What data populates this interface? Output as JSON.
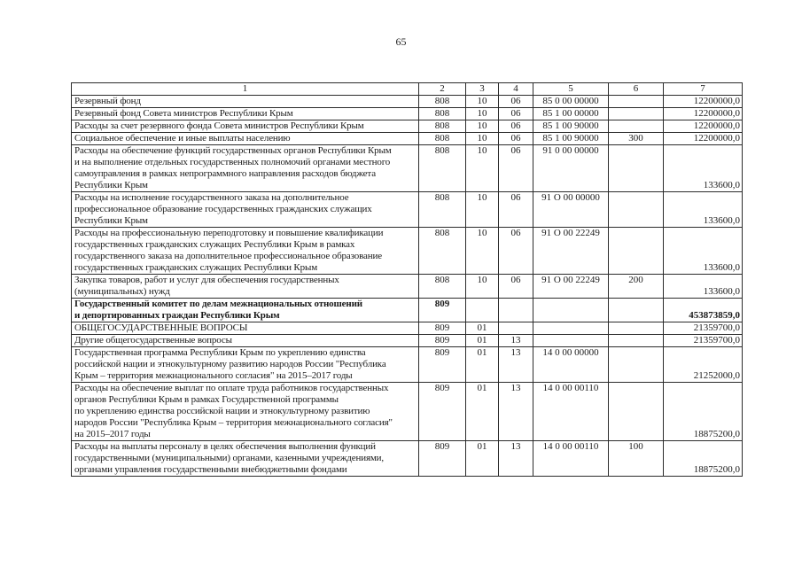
{
  "page": {
    "number": "65"
  },
  "table": {
    "headers": [
      "1",
      "2",
      "3",
      "4",
      "5",
      "6",
      "7"
    ],
    "rows": [
      {
        "bold": false,
        "name": "Резервный фонд",
        "c2": "808",
        "c3": "10",
        "c4": "06",
        "c5": "85 0 00 00000",
        "c6": "",
        "c7": "12200000,0"
      },
      {
        "bold": false,
        "name": "Резервный фонд Совета министров Республики Крым",
        "c2": "808",
        "c3": "10",
        "c4": "06",
        "c5": "85 1 00 00000",
        "c6": "",
        "c7": "12200000,0"
      },
      {
        "bold": false,
        "name": "Расходы за счет резервного фонда Совета министров Республики Крым",
        "c2": "808",
        "c3": "10",
        "c4": "06",
        "c5": "85 1 00 90000",
        "c6": "",
        "c7": "12200000,0"
      },
      {
        "bold": false,
        "name": "Социальное обеспечение и иные выплаты населению",
        "c2": "808",
        "c3": "10",
        "c4": "06",
        "c5": "85 1 00 90000",
        "c6": "300",
        "c7": "12200000,0"
      },
      {
        "bold": false,
        "name": "Расходы на обеспечение функций государственных органов Республики Крым\nи на выполнение отдельных государственных полномочий органами местного\nсамоуправления в рамках непрограммного направления расходов бюджета\nРеспублики Крым",
        "c2": "808",
        "c3": "10",
        "c4": "06",
        "c5": "91 0 00 00000",
        "c6": "",
        "c7": "133600,0"
      },
      {
        "bold": false,
        "name": "Расходы на исполнение государственного заказа на дополнительное\nпрофессиональное образование государственных гражданских служащих\nРеспублики Крым",
        "c2": "808",
        "c3": "10",
        "c4": "06",
        "c5": "91 О 00 00000",
        "c6": "",
        "c7": "133600,0"
      },
      {
        "bold": false,
        "name": "Расходы на профессиональную переподготовку и повышение квалификации\nгосударственных гражданских служащих Республики Крым в рамках\nгосударственного заказа на дополнительное профессиональное образование\nгосударственных гражданских служащих Республики Крым",
        "c2": "808",
        "c3": "10",
        "c4": "06",
        "c5": "91 О 00 22249",
        "c6": "",
        "c7": "133600,0"
      },
      {
        "bold": false,
        "name": "Закупка товаров, работ и услуг для обеспечения государственных\n(муниципальных) нужд",
        "c2": "808",
        "c3": "10",
        "c4": "06",
        "c5": "91 О 00 22249",
        "c6": "200",
        "c7": "133600,0"
      },
      {
        "bold": true,
        "name": "Государственный комитет по делам межнациональных отношений\nи депортированных граждан Республики Крым",
        "c2": "809",
        "c3": "",
        "c4": "",
        "c5": "",
        "c6": "",
        "c7": "453873859,0"
      },
      {
        "bold": false,
        "name": "ОБЩЕГОСУДАРСТВЕННЫЕ ВОПРОСЫ",
        "c2": "809",
        "c3": "01",
        "c4": "",
        "c5": "",
        "c6": "",
        "c7": "21359700,0"
      },
      {
        "bold": false,
        "name": "Другие общегосударственные вопросы",
        "c2": "809",
        "c3": "01",
        "c4": "13",
        "c5": "",
        "c6": "",
        "c7": "21359700,0"
      },
      {
        "bold": false,
        "name": "Государственная программа Республики Крым по укреплению единства\nроссийской нации и этнокультурному развитию народов России \"Республика\nКрым – территория межнационального согласия\" на 2015–2017 годы",
        "c2": "809",
        "c3": "01",
        "c4": "13",
        "c5": "14 0 00 00000",
        "c6": "",
        "c7": "21252000,0"
      },
      {
        "bold": false,
        "name": "Расходы на обеспечение выплат по оплате труда работников государственных\nорганов Республики Крым в рамках Государственной программы\nпо укреплению единства российской нации и этнокультурному развитию\nнародов России \"Республика Крым – территория межнационального согласия\"\nна 2015–2017 годы",
        "c2": "809",
        "c3": "01",
        "c4": "13",
        "c5": "14 0 00 00110",
        "c6": "",
        "c7": "18875200,0"
      },
      {
        "bold": false,
        "name": "Расходы на выплаты персоналу в целях обеспечения выполнения функций\nгосударственными (муниципальными) органами, казенными учреждениями,\nорганами управления государственными внебюджетными фондами",
        "c2": "809",
        "c3": "01",
        "c4": "13",
        "c5": "14 0 00 00110",
        "c6": "100",
        "c7": "18875200,0"
      }
    ]
  }
}
